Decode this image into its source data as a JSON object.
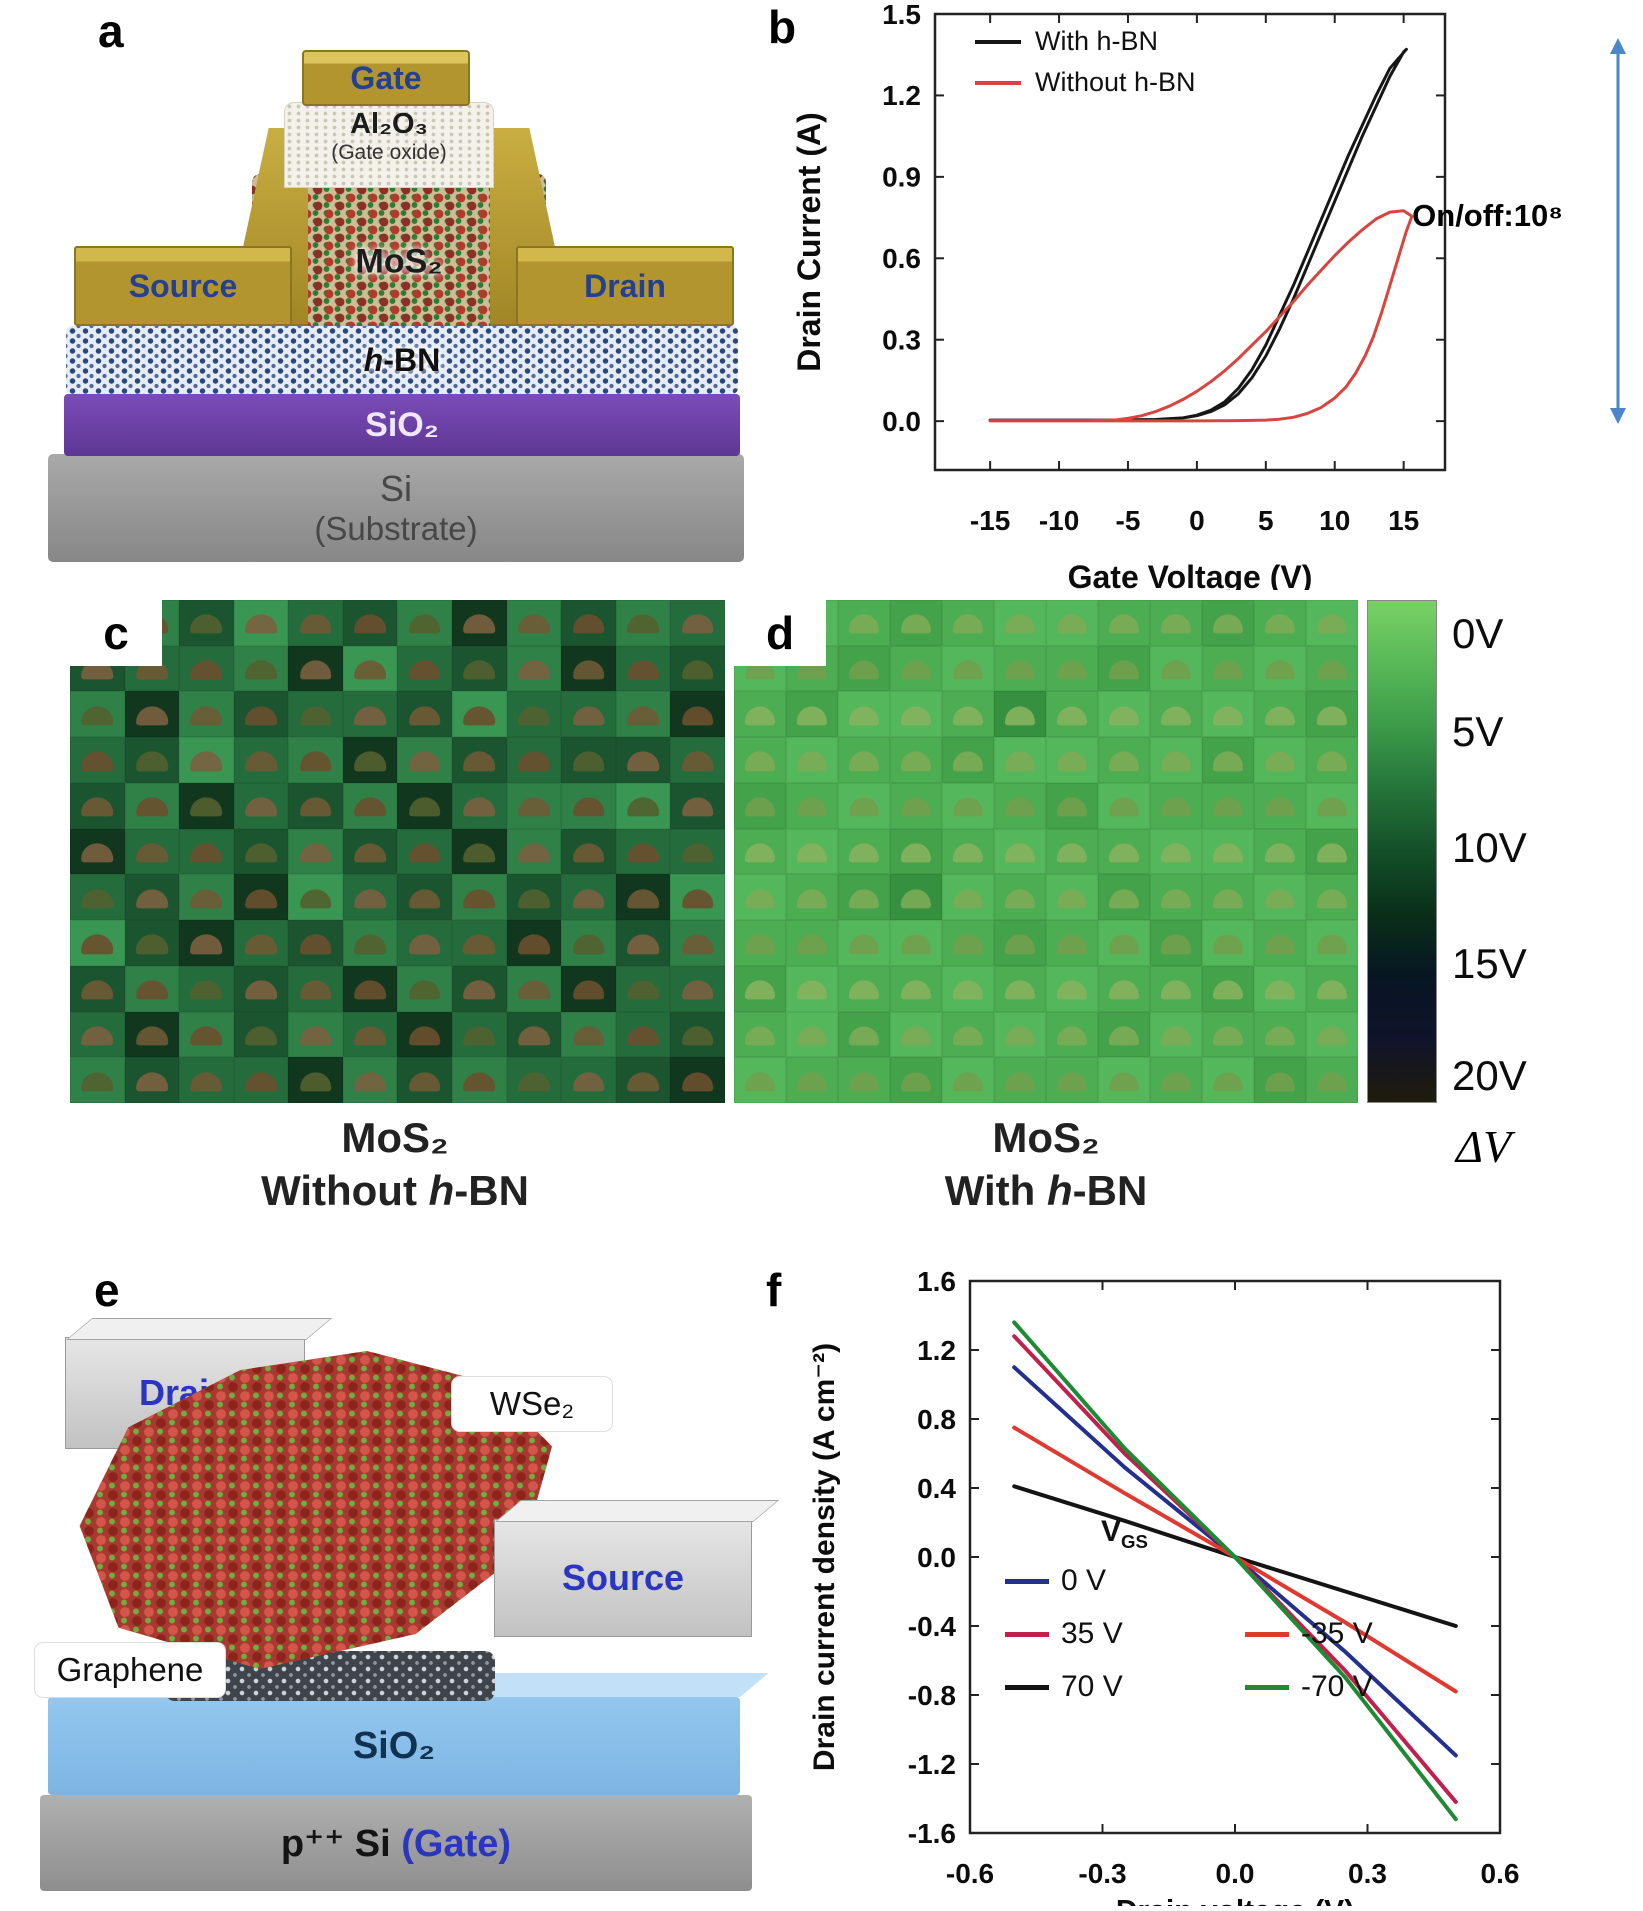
{
  "panels": {
    "a": {
      "label": "a",
      "gate": "Gate",
      "oxide": "Al₂O₃",
      "oxide_sub": "(Gate oxide)",
      "channel": "MoS₂",
      "source": "Source",
      "drain": "Drain",
      "hbn_h": "h",
      "hbn_rest": "-BN",
      "sio2": "SiO₂",
      "si": "Si",
      "si_sub": "(Substrate)"
    },
    "b": {
      "label": "b",
      "annotation": "On/off:10⁸",
      "arrow_color": "#4a86c8"
    },
    "c": {
      "label": "c",
      "caption_line1": "MoS₂",
      "caption_pre": "Without ",
      "caption_h": "h",
      "caption_post": "-BN"
    },
    "d": {
      "label": "d",
      "caption_line1": "MoS₂",
      "caption_pre": "With ",
      "caption_h": "h",
      "caption_post": "-BN"
    },
    "colorbar": {
      "labels": [
        "0V",
        "5V",
        "10V",
        "15V",
        "20V"
      ],
      "title": "ΔV",
      "gradient": [
        "#7ad166",
        "#57b857",
        "#3c9b4a",
        "#25743a",
        "#135029",
        "#0a2f1a",
        "#071523",
        "#10132b",
        "#1f1c0b"
      ]
    },
    "e": {
      "label": "e",
      "drain": "Drain",
      "wse2": "WSe₂",
      "source": "Source",
      "graphene": "Graphene",
      "sio2": "SiO₂",
      "gate_main": "p⁺⁺ Si ",
      "gate_paren": "(Gate)"
    },
    "f": {
      "label": "f",
      "legend_title_main": "V",
      "legend_title_sub": "GS"
    }
  },
  "heatmaps": {
    "c": {
      "cols": 12,
      "palette": [
        "#11381f",
        "#1b5530",
        "#256c3c",
        "#2f8148",
        "#3a9653"
      ],
      "device_colors": [
        "#6f5a35",
        "#7b6040",
        "#53602f",
        "#6a4f2e"
      ],
      "rows": [
        "231421303132",
        "122304213021",
        "303122142230",
        "214230312112",
        "130213023341",
        "022131203122",
        "213042131204",
        "410213220313",
        "132120313022",
        "203132021321",
        "312203132210"
      ]
    },
    "d": {
      "cols": 12,
      "palette": [
        "#44a24b",
        "#4cad53",
        "#55b75b",
        "#49a750",
        "#35903f"
      ],
      "device_colors": [
        "#7cab55",
        "#86b35e",
        "#72a04c"
      ],
      "rows": [
        "121012211012",
        "210121102121",
        "102214121210",
        "121102212021",
        "012121021112",
        "121012112210",
        "210421201121",
        "112210120212",
        "021121211021",
        "120212102112",
        "211021121201"
      ]
    }
  },
  "chart_data": [
    {
      "id": "transfer-curves",
      "type": "line",
      "title": "",
      "xlabel": "Gate Voltage (V)",
      "ylabel": "Drain Current (A)",
      "xlim": [
        -19,
        18
      ],
      "ylim": [
        -0.18,
        1.5
      ],
      "xticks": [
        -15,
        -10,
        -5,
        0,
        5,
        10,
        15
      ],
      "xtick_labels": [
        "-15",
        "-10",
        "-5",
        "0",
        "5",
        "10",
        "15"
      ],
      "yticks": [
        0.0,
        0.3,
        0.6,
        0.9,
        1.2,
        1.5
      ],
      "ytick_labels": [
        "0.0",
        "0.3",
        "0.6",
        "0.9",
        "1.2",
        "1.5"
      ],
      "legend_position": "top-left",
      "annotation": "On/off:10⁸",
      "series": [
        {
          "name": "With h-BN",
          "color": "#161616",
          "points": [
            [
              -15,
              0.004
            ],
            [
              -6,
              0.004
            ],
            [
              -3,
              0.006
            ],
            [
              -1,
              0.012
            ],
            [
              0,
              0.02
            ],
            [
              1,
              0.035
            ],
            [
              2,
              0.06
            ],
            [
              3,
              0.1
            ],
            [
              4,
              0.16
            ],
            [
              5,
              0.24
            ],
            [
              6,
              0.34
            ],
            [
              7,
              0.45
            ],
            [
              8,
              0.57
            ],
            [
              9,
              0.69
            ],
            [
              10,
              0.81
            ],
            [
              11,
              0.93
            ],
            [
              12,
              1.05
            ],
            [
              13,
              1.16
            ],
            [
              14,
              1.27
            ],
            [
              15,
              1.36
            ],
            [
              15.2,
              1.37
            ],
            [
              14,
              1.3
            ],
            [
              13,
              1.2
            ],
            [
              12,
              1.09
            ],
            [
              11,
              0.98
            ],
            [
              10,
              0.86
            ],
            [
              9,
              0.74
            ],
            [
              8,
              0.62
            ],
            [
              7,
              0.5
            ],
            [
              6,
              0.39
            ],
            [
              5,
              0.28
            ],
            [
              4,
              0.19
            ],
            [
              3,
              0.12
            ],
            [
              2,
              0.07
            ],
            [
              1,
              0.04
            ],
            [
              0,
              0.022
            ],
            [
              -1,
              0.012
            ],
            [
              -3,
              0.006
            ],
            [
              -6,
              0.004
            ],
            [
              -15,
              0.004
            ]
          ]
        },
        {
          "name": "Without h-BN",
          "color": "#d8453e",
          "points": [
            [
              -15,
              0.002
            ],
            [
              -8,
              0.002
            ],
            [
              -6,
              0.004
            ],
            [
              -5,
              0.01
            ],
            [
              -4,
              0.02
            ],
            [
              -3,
              0.035
            ],
            [
              -2,
              0.055
            ],
            [
              -1,
              0.08
            ],
            [
              0,
              0.11
            ],
            [
              1,
              0.145
            ],
            [
              2,
              0.185
            ],
            [
              3,
              0.23
            ],
            [
              4,
              0.28
            ],
            [
              5,
              0.33
            ],
            [
              6,
              0.385
            ],
            [
              7,
              0.44
            ],
            [
              8,
              0.5
            ],
            [
              9,
              0.555
            ],
            [
              10,
              0.61
            ],
            [
              11,
              0.66
            ],
            [
              12,
              0.705
            ],
            [
              13,
              0.745
            ],
            [
              14,
              0.77
            ],
            [
              15,
              0.775
            ],
            [
              15.6,
              0.755
            ],
            [
              15.2,
              0.7
            ],
            [
              14.6,
              0.6
            ],
            [
              14,
              0.5
            ],
            [
              13.4,
              0.4
            ],
            [
              12.8,
              0.31
            ],
            [
              12.2,
              0.24
            ],
            [
              11.5,
              0.175
            ],
            [
              10.8,
              0.125
            ],
            [
              10,
              0.085
            ],
            [
              9,
              0.05
            ],
            [
              8,
              0.028
            ],
            [
              7,
              0.014
            ],
            [
              6,
              0.007
            ],
            [
              5,
              0.004
            ],
            [
              3,
              0.002
            ],
            [
              0,
              0.001
            ],
            [
              -5,
              0.001
            ],
            [
              -15,
              0.001
            ]
          ]
        }
      ]
    },
    {
      "id": "output-curves",
      "type": "line",
      "title": "",
      "xlabel": "Drain voltage (V)",
      "ylabel": "Drain current density (A cm⁻²)",
      "xlim": [
        -0.6,
        0.6
      ],
      "ylim": [
        -1.6,
        1.6
      ],
      "xticks": [
        -0.6,
        -0.3,
        0.0,
        0.3,
        0.6
      ],
      "xtick_labels": [
        "-0.6",
        "-0.3",
        "0.0",
        "0.3",
        "0.6"
      ],
      "yticks": [
        -1.6,
        -1.2,
        -0.8,
        -0.4,
        0.0,
        0.4,
        0.8,
        1.2,
        1.6
      ],
      "ytick_labels": [
        "-1.6",
        "-1.2",
        "-0.8",
        "-0.4",
        "0.0",
        "0.4",
        "0.8",
        "1.2",
        "1.6"
      ],
      "legend_title": "VGS",
      "legend_position": "bottom-left",
      "series": [
        {
          "name": "0 V",
          "color": "#23308f",
          "points": [
            [
              -0.5,
              1.1
            ],
            [
              -0.25,
              0.52
            ],
            [
              0,
              0
            ],
            [
              0.25,
              -0.55
            ],
            [
              0.5,
              -1.15
            ]
          ]
        },
        {
          "name": "35 V",
          "color": "#c2204c",
          "points": [
            [
              -0.5,
              1.28
            ],
            [
              -0.25,
              0.6
            ],
            [
              0,
              0
            ],
            [
              0.25,
              -0.66
            ],
            [
              0.5,
              -1.42
            ]
          ]
        },
        {
          "name": "70 V",
          "color": "#141414",
          "points": [
            [
              -0.5,
              0.41
            ],
            [
              -0.25,
              0.21
            ],
            [
              0,
              0
            ],
            [
              0.25,
              -0.2
            ],
            [
              0.5,
              -0.4
            ]
          ]
        },
        {
          "name": "-35 V",
          "color": "#e03a30",
          "points": [
            [
              -0.5,
              0.75
            ],
            [
              -0.25,
              0.37
            ],
            [
              0,
              0
            ],
            [
              0.25,
              -0.38
            ],
            [
              0.5,
              -0.78
            ]
          ]
        },
        {
          "name": "-70 V",
          "color": "#1e8a34",
          "points": [
            [
              -0.5,
              1.36
            ],
            [
              -0.25,
              0.63
            ],
            [
              0,
              0
            ],
            [
              0.25,
              -0.7
            ],
            [
              0.5,
              -1.52
            ]
          ]
        }
      ]
    }
  ]
}
